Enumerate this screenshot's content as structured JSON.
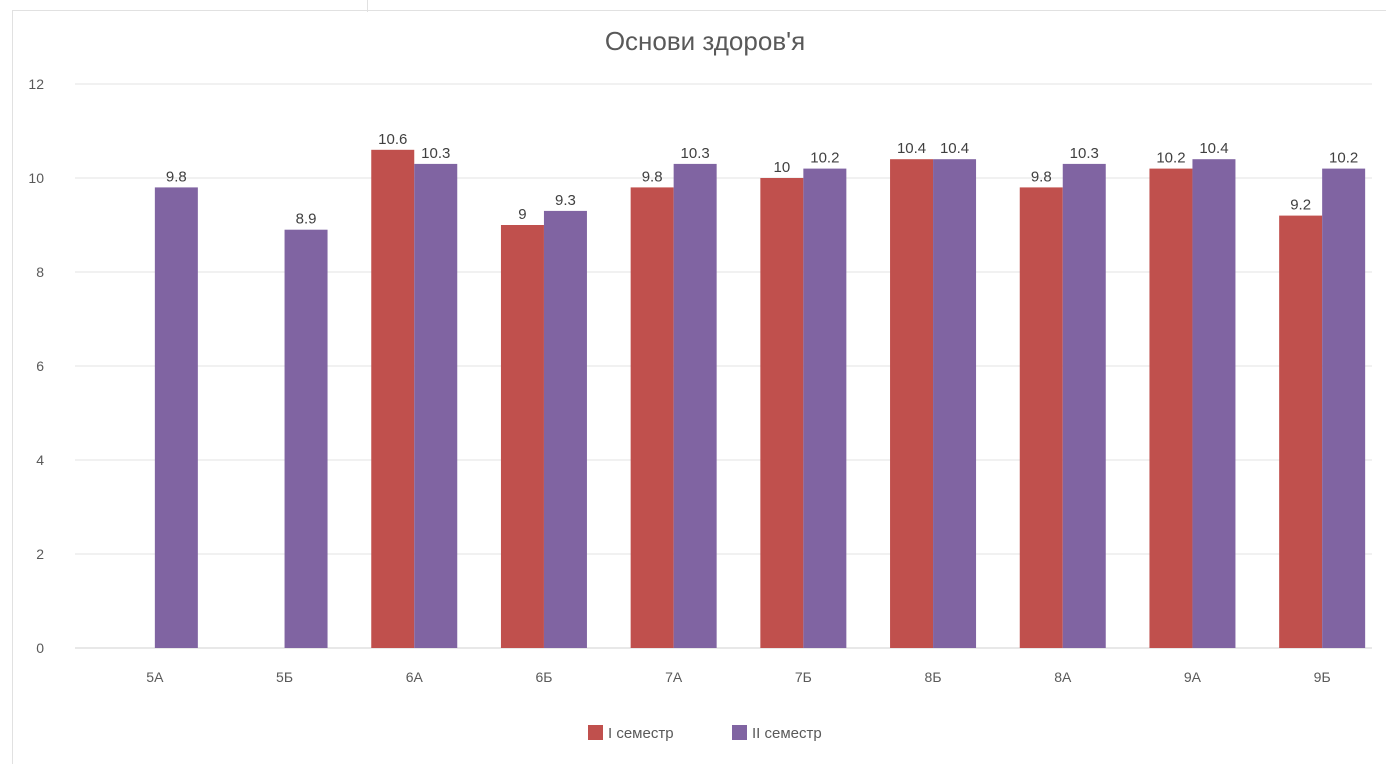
{
  "chart_data": {
    "type": "bar",
    "title": "Основи здоров'я",
    "xlabel": "",
    "ylabel": "",
    "ylim": [
      0,
      12
    ],
    "yticks": [
      0,
      2,
      4,
      6,
      8,
      10,
      12
    ],
    "grid": true,
    "legend_position": "bottom",
    "categories": [
      "5А",
      "5Б",
      "6А",
      "6Б",
      "7А",
      "7Б",
      "8Б",
      "8А",
      "9А",
      "9Б"
    ],
    "series": [
      {
        "name": "І семестр",
        "color": "#c0504d",
        "values": [
          null,
          null,
          10.6,
          9,
          9.8,
          10,
          10.4,
          9.8,
          10.2,
          9.2
        ],
        "labels": [
          "",
          "",
          "10.6",
          "9",
          "9.8",
          "10",
          "10.4",
          "9.8",
          "10.2",
          "9.2"
        ]
      },
      {
        "name": "ІІ семестр",
        "color": "#8064a2",
        "values": [
          9.8,
          8.9,
          10.3,
          9.3,
          10.3,
          10.2,
          10.4,
          10.3,
          10.4,
          10.2
        ],
        "labels": [
          "9.8",
          "8.9",
          "10.3",
          "9.3",
          "10.3",
          "10.2",
          "10.4",
          "10.3",
          "10.4",
          "10.2"
        ]
      }
    ]
  }
}
